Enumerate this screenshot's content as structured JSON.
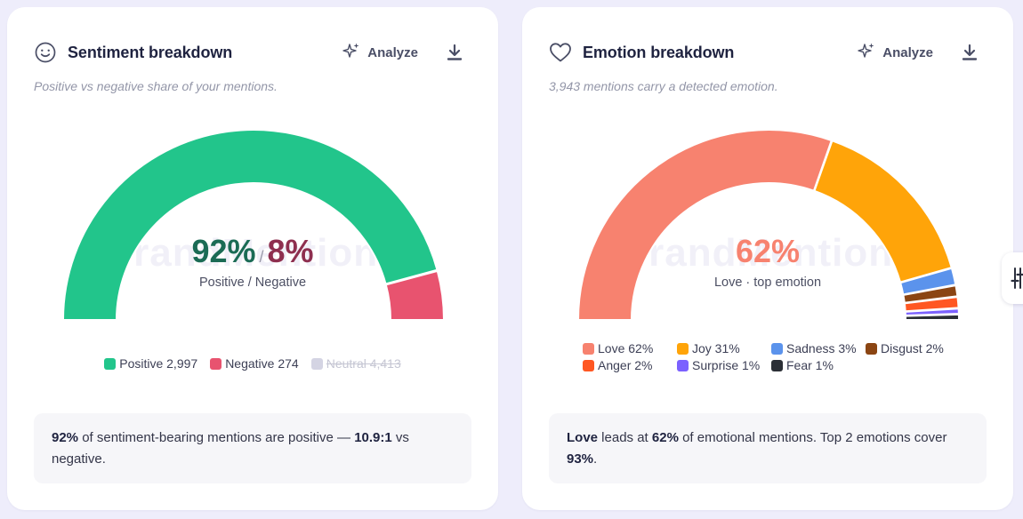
{
  "sentiment": {
    "title": "Sentiment breakdown",
    "icon": "smile-icon",
    "analyze_label": "Analyze",
    "subtitle": "Positive vs negative share of your mentions.",
    "watermark": "BrandMentions",
    "positive_pct": "92%",
    "separator": "/",
    "negative_pct": "8%",
    "caption": "Positive / Negative",
    "legend": [
      {
        "label": "Positive 2,997",
        "color": "#22c58b"
      },
      {
        "label": "Negative 274",
        "color": "#e8536f"
      },
      {
        "label": "Neutral 4,413",
        "color": "#d4d4e3",
        "hidden": true
      }
    ],
    "summary": {
      "p1": "92%",
      "t1": " of sentiment-bearing mentions are positive — ",
      "p2": "10.9:1",
      "t2": " vs negative."
    }
  },
  "emotion": {
    "title": "Emotion breakdown",
    "icon": "heart-icon",
    "analyze_label": "Analyze",
    "subtitle": "3,943 mentions carry a detected emotion.",
    "watermark": "BrandMentions",
    "top_pct": "62%",
    "caption": "Love · top emotion",
    "legend": [
      {
        "label": "Love 62%",
        "color": "#f7826f"
      },
      {
        "label": "Joy 31%",
        "color": "#ffa409"
      },
      {
        "label": "Sadness 3%",
        "color": "#5b93ec"
      },
      {
        "label": "Disgust 2%",
        "color": "#8b4513"
      },
      {
        "label": "Anger 2%",
        "color": "#ff5722"
      },
      {
        "label": "Surprise 1%",
        "color": "#7b61ff"
      },
      {
        "label": "Fear 1%",
        "color": "#2b2f36"
      }
    ],
    "summary": {
      "p1": "Love",
      "t1": " leads at ",
      "p2": "62%",
      "t2": " of emotional mentions. Top 2 emotions cover ",
      "p3": "93%",
      "t3": "."
    }
  },
  "chart_data": [
    {
      "type": "pie",
      "variant": "half-donut",
      "categories": [
        "Positive",
        "Negative"
      ],
      "values": [
        2997,
        274
      ],
      "hidden_categories": [
        {
          "name": "Neutral",
          "value": 4413
        }
      ],
      "colors": [
        "#22c58b",
        "#e8536f"
      ]
    },
    {
      "type": "pie",
      "variant": "half-donut",
      "categories": [
        "Love",
        "Joy",
        "Sadness",
        "Disgust",
        "Anger",
        "Surprise",
        "Fear"
      ],
      "values": [
        62,
        31,
        3,
        2,
        2,
        1,
        1
      ],
      "colors": [
        "#f7826f",
        "#ffa409",
        "#5b93ec",
        "#8b4513",
        "#ff5722",
        "#7b61ff",
        "#2b2f36"
      ]
    }
  ],
  "side_tab": {
    "icon": "sliders-icon"
  }
}
